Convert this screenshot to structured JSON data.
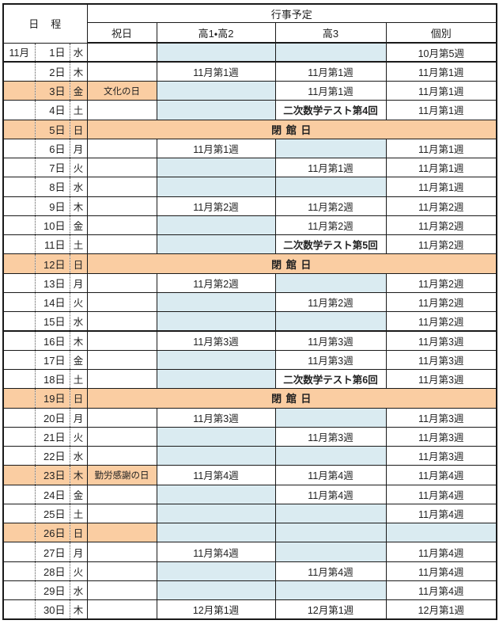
{
  "table": {
    "header": {
      "date_label": "日　程",
      "events_label": "行事予定",
      "columns": [
        "祝日",
        "高1・高2",
        "高3",
        "個別"
      ]
    },
    "colors": {
      "holiday_orange": "#FACDA2",
      "no_event_blue": "#DAEBF1",
      "border": "#1a1a1a",
      "text": "#222222"
    },
    "closed_label": "閉 館 日",
    "rows": [
      {
        "month": "11月",
        "day": "1日",
        "weekday": "水",
        "thick_bottom": true,
        "holiday": "",
        "cells": [
          {
            "text": "",
            "bg": "blue"
          },
          {
            "text": "",
            "bg": "blue"
          },
          {
            "text": "10月第5週",
            "bg": "white"
          }
        ]
      },
      {
        "day": "2日",
        "weekday": "木",
        "holiday": "",
        "cells": [
          {
            "text": "11月第1週",
            "bg": "white"
          },
          {
            "text": "11月第1週",
            "bg": "white"
          },
          {
            "text": "11月第1週",
            "bg": "white"
          }
        ]
      },
      {
        "day": "3日",
        "weekday": "金",
        "orange": true,
        "holiday": "文化の日",
        "cells": [
          {
            "text": "",
            "bg": "blue"
          },
          {
            "text": "11月第1週",
            "bg": "white"
          },
          {
            "text": "11月第1週",
            "bg": "white"
          }
        ]
      },
      {
        "day": "4日",
        "weekday": "土",
        "holiday": "",
        "cells": [
          {
            "text": "",
            "bg": "blue"
          },
          {
            "text": "二次数学テスト第4回",
            "bg": "white",
            "bold": true
          },
          {
            "text": "11月第1週",
            "bg": "white"
          }
        ]
      },
      {
        "day": "5日",
        "weekday": "日",
        "closed": true
      },
      {
        "day": "6日",
        "weekday": "月",
        "holiday": "",
        "cells": [
          {
            "text": "11月第1週",
            "bg": "white"
          },
          {
            "text": "",
            "bg": "blue"
          },
          {
            "text": "11月第1週",
            "bg": "white"
          }
        ]
      },
      {
        "day": "7日",
        "weekday": "火",
        "holiday": "",
        "cells": [
          {
            "text": "",
            "bg": "blue"
          },
          {
            "text": "11月第1週",
            "bg": "white"
          },
          {
            "text": "11月第1週",
            "bg": "white"
          }
        ]
      },
      {
        "day": "8日",
        "weekday": "水",
        "holiday": "",
        "cells": [
          {
            "text": "",
            "bg": "blue"
          },
          {
            "text": "",
            "bg": "blue"
          },
          {
            "text": "11月第1週",
            "bg": "white"
          }
        ]
      },
      {
        "day": "9日",
        "weekday": "木",
        "holiday": "",
        "cells": [
          {
            "text": "11月第2週",
            "bg": "white"
          },
          {
            "text": "11月第2週",
            "bg": "white"
          },
          {
            "text": "11月第2週",
            "bg": "white"
          }
        ]
      },
      {
        "day": "10日",
        "weekday": "金",
        "holiday": "",
        "cells": [
          {
            "text": "",
            "bg": "blue"
          },
          {
            "text": "11月第2週",
            "bg": "white"
          },
          {
            "text": "11月第2週",
            "bg": "white"
          }
        ]
      },
      {
        "day": "11日",
        "weekday": "土",
        "holiday": "",
        "cells": [
          {
            "text": "",
            "bg": "blue"
          },
          {
            "text": "二次数学テスト第5回",
            "bg": "white",
            "bold": true
          },
          {
            "text": "11月第2週",
            "bg": "white"
          }
        ]
      },
      {
        "day": "12日",
        "weekday": "日",
        "closed": true
      },
      {
        "day": "13日",
        "weekday": "月",
        "holiday": "",
        "cells": [
          {
            "text": "11月第2週",
            "bg": "white"
          },
          {
            "text": "",
            "bg": "blue"
          },
          {
            "text": "11月第2週",
            "bg": "white"
          }
        ]
      },
      {
        "day": "14日",
        "weekday": "火",
        "holiday": "",
        "cells": [
          {
            "text": "",
            "bg": "blue"
          },
          {
            "text": "11月第2週",
            "bg": "white"
          },
          {
            "text": "11月第2週",
            "bg": "white"
          }
        ]
      },
      {
        "day": "15日",
        "weekday": "水",
        "thick_bottom": true,
        "holiday": "",
        "cells": [
          {
            "text": "",
            "bg": "blue"
          },
          {
            "text": "",
            "bg": "blue"
          },
          {
            "text": "11月第2週",
            "bg": "white"
          }
        ]
      },
      {
        "day": "16日",
        "weekday": "木",
        "holiday": "",
        "cells": [
          {
            "text": "11月第3週",
            "bg": "white"
          },
          {
            "text": "11月第3週",
            "bg": "white"
          },
          {
            "text": "11月第3週",
            "bg": "white"
          }
        ]
      },
      {
        "day": "17日",
        "weekday": "金",
        "holiday": "",
        "cells": [
          {
            "text": "",
            "bg": "blue"
          },
          {
            "text": "11月第3週",
            "bg": "white"
          },
          {
            "text": "11月第3週",
            "bg": "white"
          }
        ]
      },
      {
        "day": "18日",
        "weekday": "土",
        "holiday": "",
        "cells": [
          {
            "text": "",
            "bg": "blue"
          },
          {
            "text": "二次数学テスト第6回",
            "bg": "white",
            "bold": true
          },
          {
            "text": "11月第3週",
            "bg": "white"
          }
        ]
      },
      {
        "day": "19日",
        "weekday": "日",
        "closed": true
      },
      {
        "day": "20日",
        "weekday": "月",
        "holiday": "",
        "cells": [
          {
            "text": "11月第3週",
            "bg": "white"
          },
          {
            "text": "",
            "bg": "blue"
          },
          {
            "text": "11月第3週",
            "bg": "white"
          }
        ]
      },
      {
        "day": "21日",
        "weekday": "火",
        "holiday": "",
        "cells": [
          {
            "text": "",
            "bg": "blue"
          },
          {
            "text": "11月第3週",
            "bg": "white"
          },
          {
            "text": "11月第3週",
            "bg": "white"
          }
        ]
      },
      {
        "day": "22日",
        "weekday": "水",
        "holiday": "",
        "cells": [
          {
            "text": "",
            "bg": "blue"
          },
          {
            "text": "",
            "bg": "blue"
          },
          {
            "text": "11月第3週",
            "bg": "white"
          }
        ]
      },
      {
        "day": "23日",
        "weekday": "木",
        "orange": true,
        "holiday": "勤労感謝の日",
        "cells": [
          {
            "text": "11月第4週",
            "bg": "white"
          },
          {
            "text": "11月第4週",
            "bg": "white"
          },
          {
            "text": "11月第4週",
            "bg": "white"
          }
        ]
      },
      {
        "day": "24日",
        "weekday": "金",
        "holiday": "",
        "cells": [
          {
            "text": "",
            "bg": "blue"
          },
          {
            "text": "11月第4週",
            "bg": "white"
          },
          {
            "text": "11月第4週",
            "bg": "white"
          }
        ]
      },
      {
        "day": "25日",
        "weekday": "土",
        "holiday": "",
        "cells": [
          {
            "text": "",
            "bg": "blue"
          },
          {
            "text": "",
            "bg": "blue"
          },
          {
            "text": "11月第4週",
            "bg": "white"
          }
        ]
      },
      {
        "day": "26日",
        "weekday": "日",
        "orange": true,
        "holiday": "",
        "cells": [
          {
            "text": "",
            "bg": "blue"
          },
          {
            "text": "",
            "bg": "blue"
          },
          {
            "text": "",
            "bg": "blue"
          }
        ]
      },
      {
        "day": "27日",
        "weekday": "月",
        "holiday": "",
        "cells": [
          {
            "text": "11月第4週",
            "bg": "white"
          },
          {
            "text": "",
            "bg": "blue"
          },
          {
            "text": "11月第4週",
            "bg": "white"
          }
        ]
      },
      {
        "day": "28日",
        "weekday": "火",
        "holiday": "",
        "cells": [
          {
            "text": "",
            "bg": "blue"
          },
          {
            "text": "11月第4週",
            "bg": "white"
          },
          {
            "text": "11月第4週",
            "bg": "white"
          }
        ]
      },
      {
        "day": "29日",
        "weekday": "水",
        "holiday": "",
        "cells": [
          {
            "text": "",
            "bg": "blue"
          },
          {
            "text": "",
            "bg": "blue"
          },
          {
            "text": "11月第4週",
            "bg": "white"
          }
        ]
      },
      {
        "day": "30日",
        "weekday": "木",
        "holiday": "",
        "cells": [
          {
            "text": "12月第1週",
            "bg": "white"
          },
          {
            "text": "12月第1週",
            "bg": "white"
          },
          {
            "text": "12月第1週",
            "bg": "white"
          }
        ]
      }
    ]
  }
}
